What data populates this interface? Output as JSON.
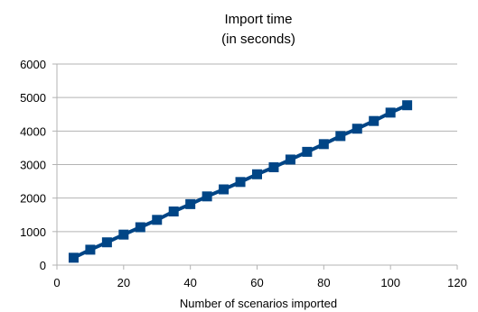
{
  "chart_data": {
    "type": "line",
    "title": "Import time",
    "subtitle": "(in seconds)",
    "xlabel": "Number of scenarios imported",
    "ylabel": "",
    "xlim": [
      0,
      120
    ],
    "ylim": [
      0,
      6000
    ],
    "x_ticks": [
      0,
      20,
      40,
      60,
      80,
      100,
      120
    ],
    "y_ticks": [
      0,
      1000,
      2000,
      3000,
      4000,
      5000,
      6000
    ],
    "grid": "horizontal",
    "legend": "none",
    "series": [
      {
        "color": "#004586",
        "marker": "square",
        "x": [
          5,
          10,
          15,
          20,
          25,
          30,
          35,
          40,
          45,
          50,
          55,
          60,
          65,
          70,
          75,
          80,
          85,
          90,
          95,
          100,
          105
        ],
        "y": [
          220,
          460,
          680,
          910,
          1130,
          1350,
          1600,
          1820,
          2050,
          2260,
          2480,
          2710,
          2920,
          3150,
          3380,
          3610,
          3850,
          4070,
          4300,
          4550,
          4770
        ]
      }
    ]
  }
}
